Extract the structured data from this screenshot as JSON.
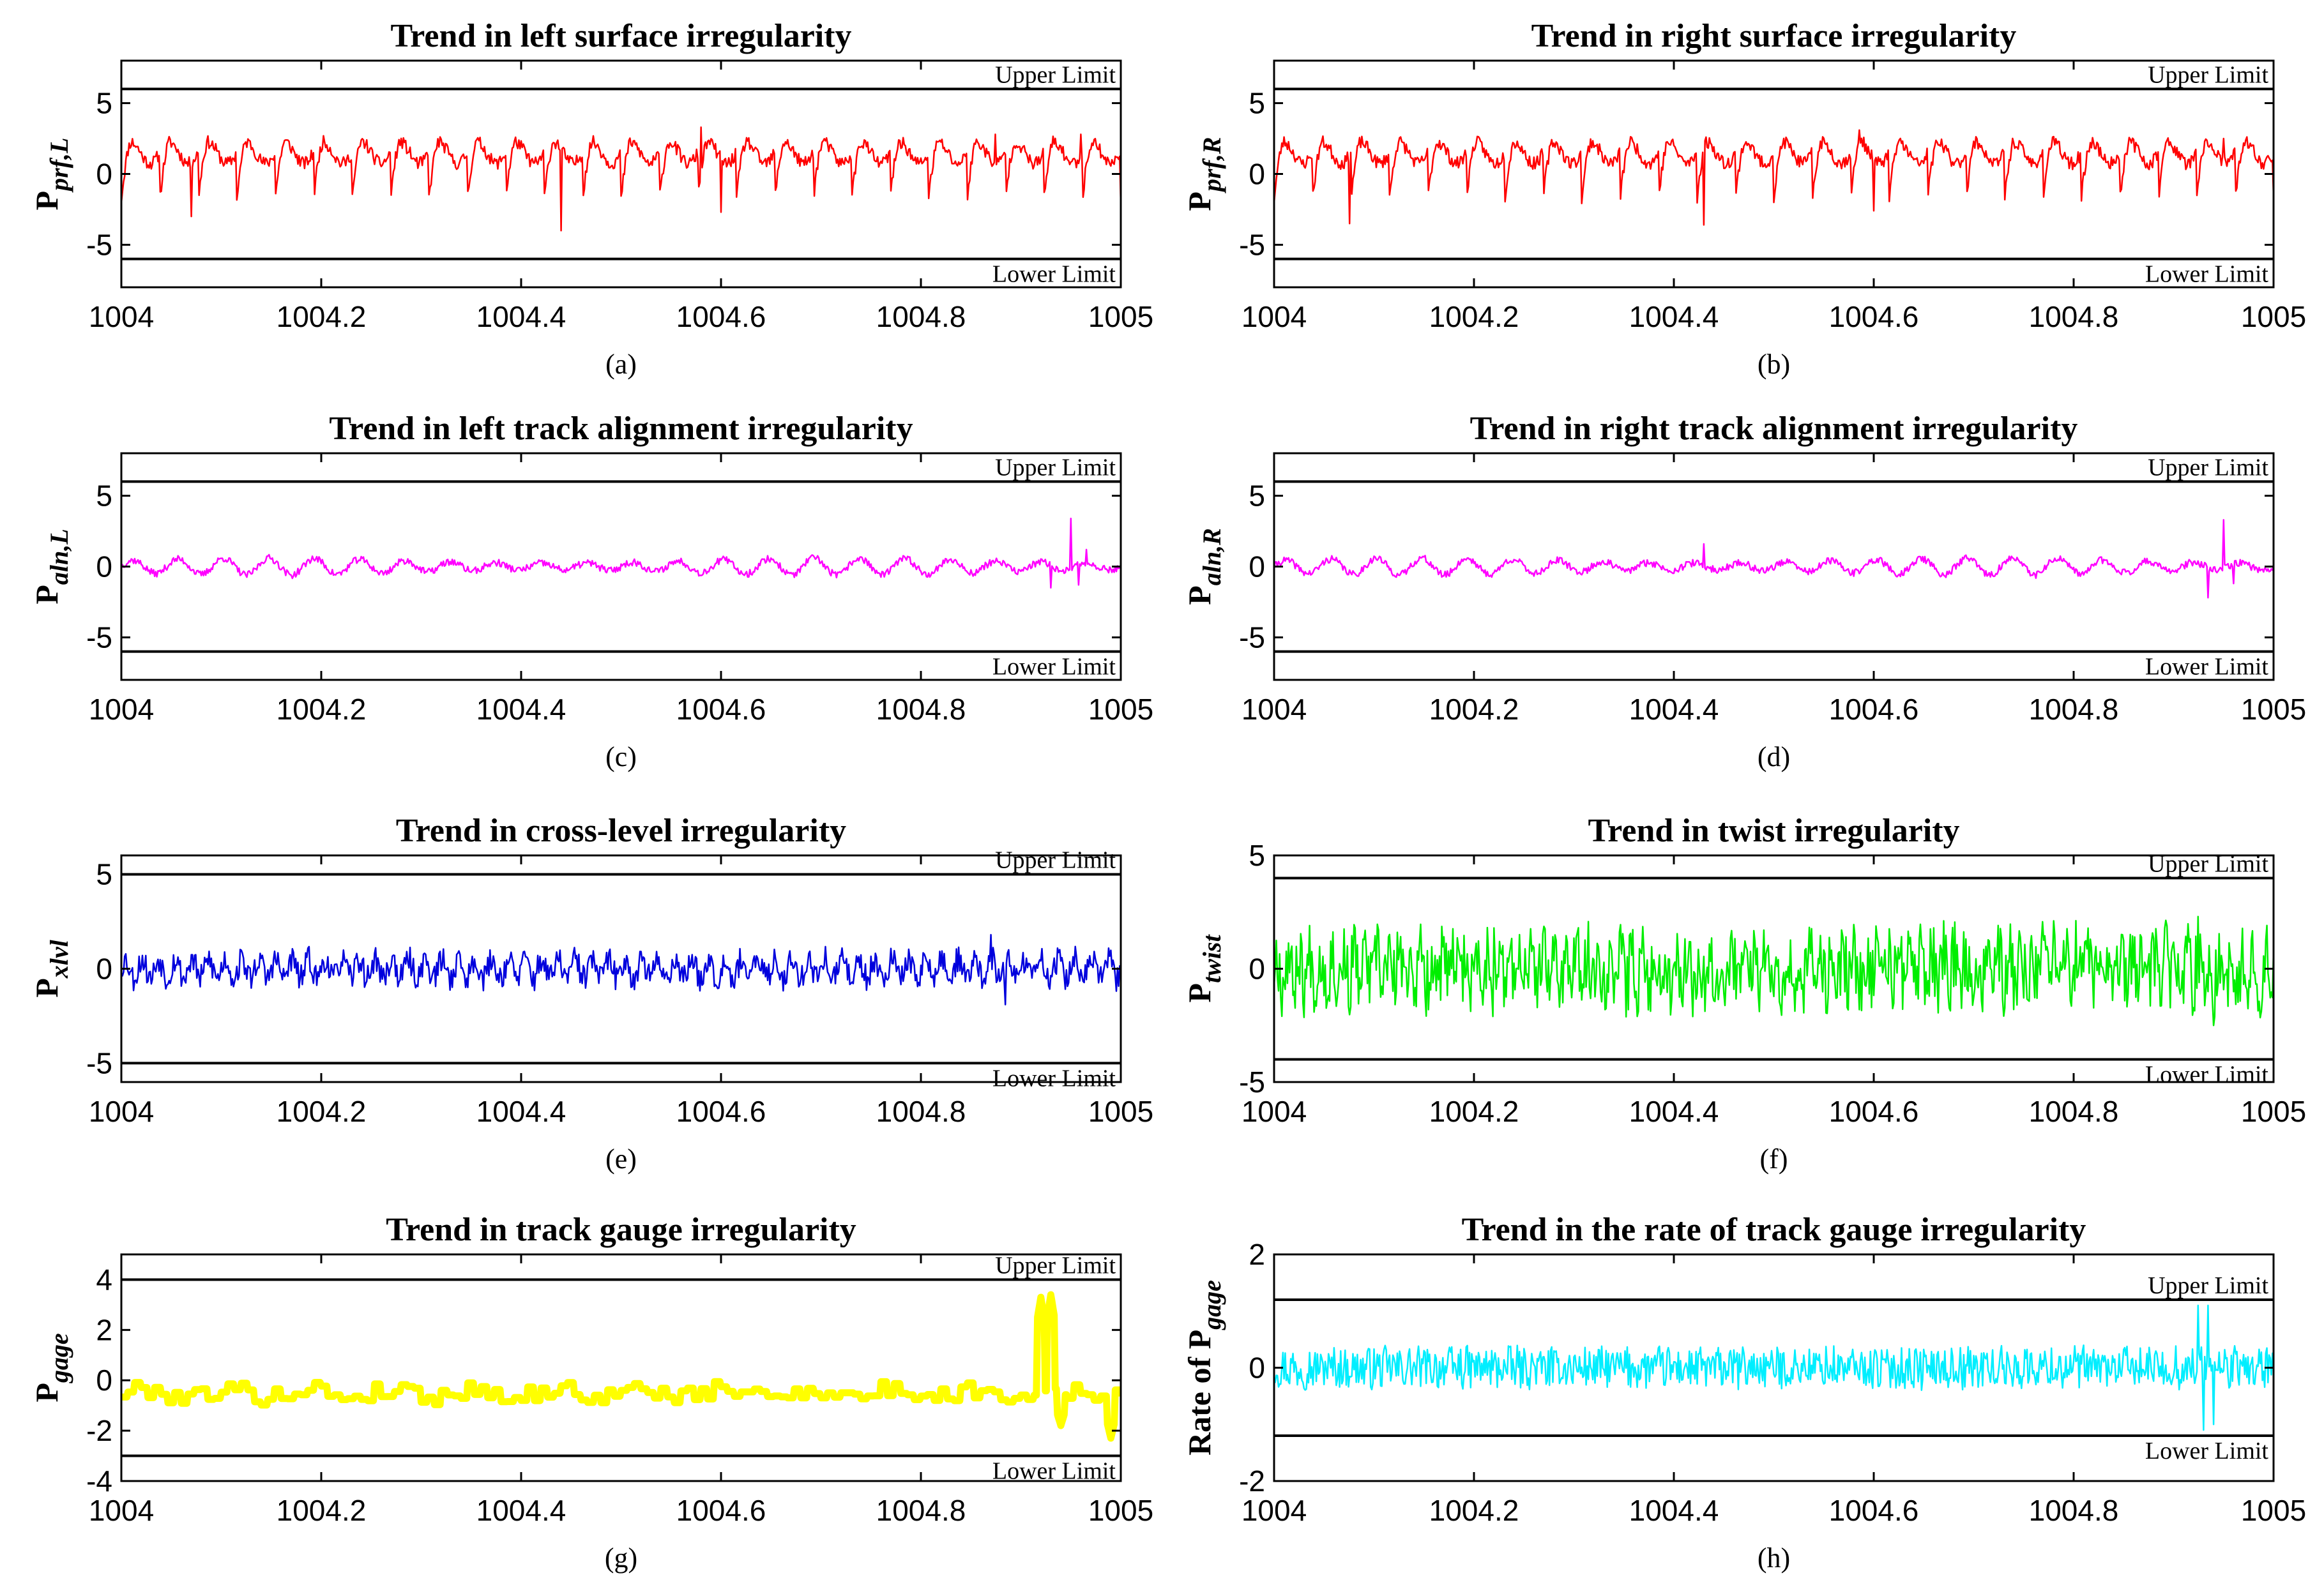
{
  "chart_data": [
    {
      "id": "a",
      "type": "line",
      "title": "Trend in left surface irregularity",
      "ylabel_main": "P",
      "ylabel_prefix": "",
      "ylabel_sub": "prf,L",
      "caption": "(a)",
      "xlim": [
        1004,
        1005
      ],
      "ylim": [
        -8,
        8
      ],
      "xticks": [
        1004,
        1004.2,
        1004.4,
        1004.6,
        1004.8,
        1005
      ],
      "xtick_labels": [
        "1004",
        "1004.2",
        "1004.4",
        "1004.6",
        "1004.8",
        "1005"
      ],
      "yticks": [
        -5,
        0,
        5
      ],
      "ytick_labels": [
        "-5",
        "0",
        "5"
      ],
      "upper_limit": {
        "value": 6,
        "label": "Upper Limit"
      },
      "lower_limit": {
        "value": -6,
        "label": "Lower Limit"
      },
      "series": [
        {
          "name": "P_prf,L",
          "color": "#ff0000",
          "style": "sag",
          "base": 0.3,
          "amp": 1.5,
          "noise": 0.45,
          "cycles": 26,
          "seed": 11,
          "width": 2.5,
          "spikes": [
            [
              1004.07,
              -3.0
            ],
            [
              1004.44,
              -4.0
            ],
            [
              1004.58,
              3.3
            ],
            [
              1004.6,
              -2.7
            ],
            [
              1004.875,
              2.8
            ],
            [
              1004.96,
              2.8
            ]
          ]
        }
      ]
    },
    {
      "id": "b",
      "type": "line",
      "title": "Trend in right surface irregularity",
      "ylabel_main": "P",
      "ylabel_prefix": "",
      "ylabel_sub": "prf,R",
      "caption": "(b)",
      "xlim": [
        1004,
        1005
      ],
      "ylim": [
        -8,
        8
      ],
      "xticks": [
        1004,
        1004.2,
        1004.4,
        1004.6,
        1004.8,
        1005
      ],
      "xtick_labels": [
        "1004",
        "1004.2",
        "1004.4",
        "1004.6",
        "1004.8",
        "1005"
      ],
      "yticks": [
        -5,
        0,
        5
      ],
      "ytick_labels": [
        "-5",
        "0",
        "5"
      ],
      "upper_limit": {
        "value": 6,
        "label": "Upper Limit"
      },
      "lower_limit": {
        "value": -6,
        "label": "Lower Limit"
      },
      "series": [
        {
          "name": "P_prf,R",
          "color": "#ff0000",
          "style": "sag",
          "base": 0.3,
          "amp": 1.5,
          "noise": 0.45,
          "cycles": 26,
          "seed": 23,
          "width": 2.5,
          "spikes": [
            [
              1004.075,
              -3.5
            ],
            [
              1004.43,
              -3.6
            ],
            [
              1004.585,
              3.1
            ],
            [
              1004.6,
              -2.6
            ],
            [
              1004.95,
              2.5
            ]
          ]
        }
      ]
    },
    {
      "id": "c",
      "type": "line",
      "title": "Trend in left track alignment irregularity",
      "ylabel_main": "P",
      "ylabel_prefix": "",
      "ylabel_sub": "aln,L",
      "caption": "(c)",
      "xlim": [
        1004,
        1005
      ],
      "ylim": [
        -8,
        8
      ],
      "xticks": [
        1004,
        1004.2,
        1004.4,
        1004.6,
        1004.8,
        1005
      ],
      "xtick_labels": [
        "1004",
        "1004.2",
        "1004.4",
        "1004.6",
        "1004.8",
        "1005"
      ],
      "yticks": [
        -5,
        0,
        5
      ],
      "ytick_labels": [
        "-5",
        "0",
        "5"
      ],
      "upper_limit": {
        "value": 6,
        "label": "Upper Limit"
      },
      "lower_limit": {
        "value": -6,
        "label": "Lower Limit"
      },
      "series": [
        {
          "name": "P_aln,L",
          "color": "#ff00ff",
          "style": "wave",
          "base": 0,
          "amp": 0.6,
          "noise": 0.25,
          "cycles": 22,
          "seed": 37,
          "width": 2.5,
          "spikes": [
            [
              1004.93,
              -1.5
            ],
            [
              1004.95,
              3.4
            ],
            [
              1004.958,
              -1.3
            ],
            [
              1004.965,
              1.2
            ]
          ]
        }
      ]
    },
    {
      "id": "d",
      "type": "line",
      "title": "Trend in right track alignment irregularity",
      "ylabel_main": "P",
      "ylabel_prefix": "",
      "ylabel_sub": "aln,R",
      "caption": "(d)",
      "xlim": [
        1004,
        1005
      ],
      "ylim": [
        -8,
        8
      ],
      "xticks": [
        1004,
        1004.2,
        1004.4,
        1004.6,
        1004.8,
        1005
      ],
      "xtick_labels": [
        "1004",
        "1004.2",
        "1004.4",
        "1004.6",
        "1004.8",
        "1005"
      ],
      "yticks": [
        -5,
        0,
        5
      ],
      "ytick_labels": [
        "-5",
        "0",
        "5"
      ],
      "upper_limit": {
        "value": 6,
        "label": "Upper Limit"
      },
      "lower_limit": {
        "value": -6,
        "label": "Lower Limit"
      },
      "series": [
        {
          "name": "P_aln,R",
          "color": "#ff00ff",
          "style": "wave",
          "base": 0,
          "amp": 0.6,
          "noise": 0.25,
          "cycles": 22,
          "seed": 41,
          "width": 2.5,
          "spikes": [
            [
              1004.43,
              1.6
            ],
            [
              1004.935,
              -2.2
            ],
            [
              1004.95,
              3.3
            ],
            [
              1004.96,
              -1.2
            ]
          ]
        }
      ]
    },
    {
      "id": "e",
      "type": "line",
      "title": "Trend in cross-level irregularity",
      "ylabel_main": "P",
      "ylabel_prefix": "",
      "ylabel_sub": "xlvl",
      "caption": "(e)",
      "xlim": [
        1004,
        1005
      ],
      "ylim": [
        -6,
        6
      ],
      "xticks": [
        1004,
        1004.2,
        1004.4,
        1004.6,
        1004.8,
        1005
      ],
      "xtick_labels": [
        "1004",
        "1004.2",
        "1004.4",
        "1004.6",
        "1004.8",
        "1005"
      ],
      "yticks": [
        -5,
        0,
        5
      ],
      "ytick_labels": [
        "-5",
        "0",
        "5"
      ],
      "upper_limit": {
        "value": 5,
        "label": "Upper Limit"
      },
      "lower_limit": {
        "value": -5,
        "label": "Lower Limit"
      },
      "series": [
        {
          "name": "P_xlvl",
          "color": "#0000dd",
          "style": "noise",
          "base": 0,
          "amp": 0.5,
          "noise": 0.7,
          "cycles": 60,
          "seed": 53,
          "width": 2.5,
          "spikes": [
            [
              1004.87,
              1.8
            ],
            [
              1004.885,
              -1.9
            ]
          ]
        }
      ]
    },
    {
      "id": "f",
      "type": "line",
      "title": "Trend in twist irregularity",
      "ylabel_main": "P",
      "ylabel_prefix": "",
      "ylabel_sub": "twist",
      "caption": "(f)",
      "xlim": [
        1004,
        1005
      ],
      "ylim": [
        -5,
        5
      ],
      "xticks": [
        1004,
        1004.2,
        1004.4,
        1004.6,
        1004.8,
        1005
      ],
      "xtick_labels": [
        "1004",
        "1004.2",
        "1004.4",
        "1004.6",
        "1004.8",
        "1005"
      ],
      "yticks": [
        -5,
        0,
        5
      ],
      "ytick_labels": [
        "-5",
        "0",
        "5"
      ],
      "upper_limit": {
        "value": 4,
        "label": "Upper Limit"
      },
      "lower_limit": {
        "value": -4,
        "label": "Lower Limit"
      },
      "series": [
        {
          "name": "P_twist",
          "color": "#00ee00",
          "style": "noise",
          "base": 0,
          "amp": 0.7,
          "noise": 1.5,
          "cycles": 90,
          "seed": 67,
          "width": 2.5,
          "spikes": [
            [
              1004.22,
              1.8
            ],
            [
              1004.925,
              2.3
            ],
            [
              1004.94,
              -2.5
            ]
          ]
        }
      ]
    },
    {
      "id": "g",
      "type": "line",
      "title": "Trend in track gauge irregularity",
      "ylabel_main": "P",
      "ylabel_prefix": "",
      "ylabel_sub": "gage",
      "caption": "(g)",
      "xlim": [
        1004,
        1005
      ],
      "ylim": [
        -4,
        5
      ],
      "xticks": [
        1004,
        1004.2,
        1004.4,
        1004.6,
        1004.8,
        1005
      ],
      "xtick_labels": [
        "1004",
        "1004.2",
        "1004.4",
        "1004.6",
        "1004.8",
        "1005"
      ],
      "yticks": [
        -4,
        -2,
        0,
        2,
        4
      ],
      "ytick_labels": [
        "-4",
        "-2",
        "0",
        "2",
        "4"
      ],
      "upper_limit": {
        "value": 4,
        "label": "Upper Limit"
      },
      "lower_limit": {
        "value": -3,
        "label": "Lower Limit"
      },
      "series": [
        {
          "name": "P_gage",
          "color": "#ffff00",
          "style": "thick",
          "base": -0.5,
          "amp": 0.15,
          "noise": 0.35,
          "cycles": 12,
          "seed": 79,
          "width": 11,
          "spikes": [
            [
              1004.92,
              3.3
            ],
            [
              1004.93,
              3.4
            ],
            [
              1004.94,
              -1.8
            ],
            [
              1004.99,
              -2.3
            ]
          ]
        }
      ]
    },
    {
      "id": "h",
      "type": "line",
      "title": "Trend in the rate of track gauge irregularity",
      "ylabel_main": "P",
      "ylabel_prefix": "Rate of ",
      "ylabel_sub": "gage",
      "caption": "(h)",
      "xlim": [
        1004,
        1005
      ],
      "ylim": [
        -2,
        2
      ],
      "xticks": [
        1004,
        1004.2,
        1004.4,
        1004.6,
        1004.8,
        1005
      ],
      "xtick_labels": [
        "1004",
        "1004.2",
        "1004.4",
        "1004.6",
        "1004.8",
        "1005"
      ],
      "yticks": [
        -2,
        0,
        2
      ],
      "ytick_labels": [
        "-2",
        "0",
        "2"
      ],
      "upper_limit": {
        "value": 1.2,
        "label": "Upper Limit"
      },
      "lower_limit": {
        "value": -1.2,
        "label": "Lower Limit"
      },
      "series": [
        {
          "name": "Rate of P_gage",
          "color": "#00eeff",
          "style": "noise",
          "base": 0,
          "amp": 0.05,
          "noise": 0.35,
          "cycles": 120,
          "seed": 97,
          "width": 2.5,
          "spikes": [
            [
              1004.925,
              1.1
            ],
            [
              1004.93,
              -1.1
            ],
            [
              1004.935,
              1.1
            ],
            [
              1004.94,
              -1.0
            ]
          ]
        }
      ]
    }
  ]
}
